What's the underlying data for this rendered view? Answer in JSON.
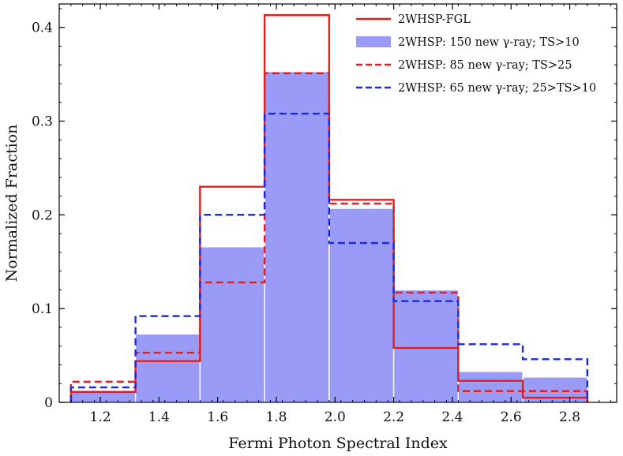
{
  "chart_data": {
    "type": "bar",
    "title": "",
    "xlabel": "Fermi Photon Spectral Index",
    "ylabel": "Normalized Fraction",
    "xlim": [
      1.06,
      2.96
    ],
    "ylim": [
      0,
      0.425
    ],
    "bin_edges": [
      1.1,
      1.32,
      1.54,
      1.76,
      1.98,
      2.2,
      2.42,
      2.64,
      2.86
    ],
    "xticks": [
      1.2,
      1.4,
      1.6,
      1.8,
      2.0,
      2.2,
      2.4,
      2.6,
      2.8
    ],
    "xtick_labels": [
      "1.2",
      "1.4",
      "1.6",
      "1.8",
      "2.0",
      "2.2",
      "2.4",
      "2.6",
      "2.8"
    ],
    "yticks": [
      0,
      0.1,
      0.2,
      0.3,
      0.4
    ],
    "ytick_labels": [
      "0",
      "0.1",
      "0.2",
      "0.3",
      "0.4"
    ],
    "legend_position": "top-right",
    "series": [
      {
        "name": "2WHSP-FGL",
        "style": "step-solid",
        "color": "#e02020",
        "values": [
          0.011,
          0.044,
          0.23,
          0.413,
          0.216,
          0.058,
          0.023,
          0.005
        ]
      },
      {
        "name": "2WHSP: 150 new γ-ray; TS>10",
        "style": "filled",
        "color": "#9a9af7",
        "values": [
          0.013,
          0.073,
          0.166,
          0.353,
          0.207,
          0.12,
          0.033,
          0.027
        ]
      },
      {
        "name": "2WHSP: 85 new γ-ray; TS>25",
        "style": "step-dashed",
        "color": "#e02020",
        "values": [
          0.022,
          0.053,
          0.128,
          0.351,
          0.212,
          0.117,
          0.012,
          0.012
        ]
      },
      {
        "name": "2WHSP: 65 new γ-ray; 25>TS>10",
        "style": "step-dashed",
        "color": "#1c2bd6",
        "values": [
          0.016,
          0.092,
          0.2,
          0.308,
          0.17,
          0.108,
          0.062,
          0.046
        ]
      }
    ]
  }
}
